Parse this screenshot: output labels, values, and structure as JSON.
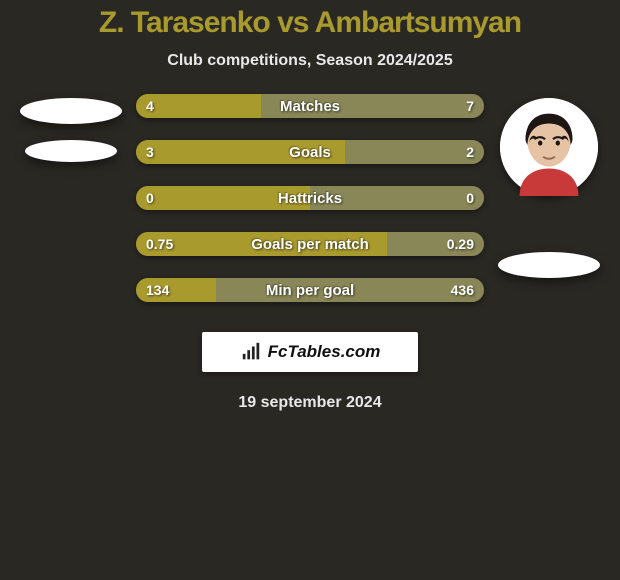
{
  "title": {
    "text": "Z. Tarasenko vs Ambartsumyan",
    "color": "#a99a2e",
    "fontsize": 30
  },
  "subtitle": {
    "text": "Club competitions, Season 2024/2025",
    "fontsize": 16
  },
  "colors": {
    "left": "#a99a2e",
    "right": "#898757",
    "bg": "#2a2823",
    "track": "#5a5a3f"
  },
  "stats": {
    "label_fontsize": 15,
    "value_fontsize": 14,
    "rows": [
      {
        "label": "Matches",
        "left_val": "4",
        "right_val": "7",
        "left_pct": 36,
        "right_pct": 64
      },
      {
        "label": "Goals",
        "left_val": "3",
        "right_val": "2",
        "left_pct": 60,
        "right_pct": 40
      },
      {
        "label": "Hattricks",
        "left_val": "0",
        "right_val": "0",
        "left_pct": 50,
        "right_pct": 50
      },
      {
        "label": "Goals per match",
        "left_val": "0.75",
        "right_val": "0.29",
        "left_pct": 72,
        "right_pct": 28
      },
      {
        "label": "Min per goal",
        "left_val": "134",
        "right_val": "436",
        "left_pct": 23,
        "right_pct": 77
      }
    ]
  },
  "left_player": {
    "avatar": {
      "bg": "#ffffff",
      "face": "#ffffff"
    }
  },
  "right_player": {
    "avatar": {
      "bg": "#ffffff",
      "hair": "#1d1612",
      "skin": "#e6c3a4",
      "shirt": "#c83a3a"
    }
  },
  "brand": {
    "icon_color": "#222222",
    "text": "FcTables.com",
    "fontsize": 17
  },
  "date": {
    "text": "19 september 2024",
    "fontsize": 16
  }
}
